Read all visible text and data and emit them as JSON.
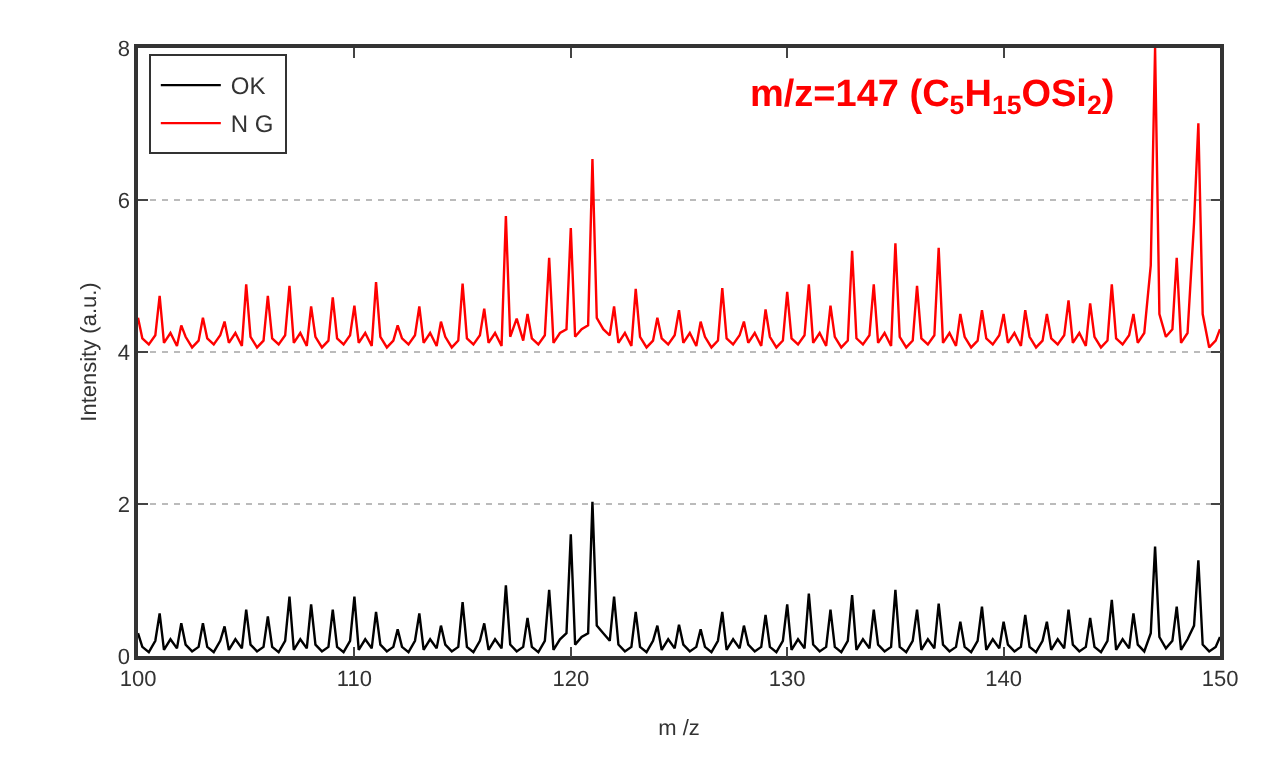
{
  "chart_data": {
    "type": "line",
    "xlabel": "m /z",
    "ylabel": "Intensity (a.u.)",
    "xlim": [
      100,
      150
    ],
    "xticks": [
      100,
      110,
      120,
      130,
      140,
      150
    ],
    "ylim": [
      0,
      8
    ],
    "yticks": [
      0,
      2,
      4,
      6,
      8
    ],
    "grid": "y",
    "legend": "top left",
    "line_style": "solid",
    "annotations": [
      "m/z=147 (C$_{5}$H$_{15}$OSi$_{2}$)"
    ],
    "x": [
      100,
      100.2,
      100.5,
      100.8,
      101,
      101.2,
      101.5,
      101.8,
      102,
      102.2,
      102.5,
      102.8,
      103,
      103.2,
      103.5,
      103.8,
      104,
      104.2,
      104.5,
      104.8,
      105,
      105.2,
      105.5,
      105.8,
      106,
      106.2,
      106.5,
      106.8,
      107,
      107.2,
      107.5,
      107.8,
      108,
      108.2,
      108.5,
      108.8,
      109,
      109.2,
      109.5,
      109.8,
      110,
      110.2,
      110.5,
      110.8,
      111,
      111.2,
      111.5,
      111.8,
      112,
      112.2,
      112.5,
      112.8,
      113,
      113.2,
      113.5,
      113.8,
      114,
      114.2,
      114.5,
      114.8,
      115,
      115.2,
      115.5,
      115.8,
      116,
      116.2,
      116.5,
      116.8,
      117,
      117.2,
      117.5,
      117.8,
      118,
      118.2,
      118.5,
      118.8,
      119,
      119.2,
      119.5,
      119.8,
      120,
      120.2,
      120.5,
      120.8,
      121,
      121.2,
      121.5,
      121.8,
      122,
      122.2,
      122.5,
      122.8,
      123,
      123.2,
      123.5,
      123.8,
      124,
      124.2,
      124.5,
      124.8,
      125,
      125.2,
      125.5,
      125.8,
      126,
      126.2,
      126.5,
      126.8,
      127,
      127.2,
      127.5,
      127.8,
      128,
      128.2,
      128.5,
      128.8,
      129,
      129.2,
      129.5,
      129.8,
      130,
      130.2,
      130.5,
      130.8,
      131,
      131.2,
      131.5,
      131.8,
      132,
      132.2,
      132.5,
      132.8,
      133,
      133.2,
      133.5,
      133.8,
      134,
      134.2,
      134.5,
      134.8,
      135,
      135.2,
      135.5,
      135.8,
      136,
      136.2,
      136.5,
      136.8,
      137,
      137.2,
      137.5,
      137.8,
      138,
      138.2,
      138.5,
      138.8,
      139,
      139.2,
      139.5,
      139.8,
      140,
      140.2,
      140.5,
      140.8,
      141,
      141.2,
      141.5,
      141.8,
      142,
      142.2,
      142.5,
      142.8,
      143,
      143.2,
      143.5,
      143.8,
      144,
      144.2,
      144.5,
      144.8,
      145,
      145.2,
      145.5,
      145.8,
      146,
      146.2,
      146.5,
      146.8,
      147,
      147.2,
      147.5,
      147.8,
      148,
      148.2,
      148.5,
      148.8,
      149,
      149.2,
      149.5,
      149.8,
      150
    ],
    "series": [
      {
        "name": "OK",
        "color": "#000000",
        "values": [
          0.3,
          0.12,
          0.05,
          0.2,
          0.56,
          0.08,
          0.22,
          0.1,
          0.43,
          0.15,
          0.06,
          0.12,
          0.43,
          0.12,
          0.05,
          0.2,
          0.39,
          0.08,
          0.22,
          0.1,
          0.61,
          0.15,
          0.06,
          0.12,
          0.52,
          0.12,
          0.05,
          0.2,
          0.78,
          0.08,
          0.22,
          0.1,
          0.68,
          0.15,
          0.06,
          0.12,
          0.61,
          0.12,
          0.05,
          0.2,
          0.78,
          0.08,
          0.22,
          0.1,
          0.58,
          0.15,
          0.06,
          0.12,
          0.35,
          0.12,
          0.05,
          0.2,
          0.56,
          0.08,
          0.22,
          0.1,
          0.4,
          0.15,
          0.06,
          0.12,
          0.71,
          0.12,
          0.05,
          0.2,
          0.43,
          0.08,
          0.22,
          0.1,
          0.93,
          0.15,
          0.06,
          0.12,
          0.5,
          0.12,
          0.05,
          0.2,
          0.87,
          0.08,
          0.22,
          0.3,
          1.6,
          0.15,
          0.25,
          0.3,
          2.03,
          0.4,
          0.3,
          0.2,
          0.78,
          0.15,
          0.06,
          0.12,
          0.58,
          0.12,
          0.05,
          0.2,
          0.4,
          0.08,
          0.22,
          0.1,
          0.41,
          0.15,
          0.06,
          0.12,
          0.35,
          0.12,
          0.05,
          0.2,
          0.58,
          0.08,
          0.22,
          0.1,
          0.4,
          0.15,
          0.06,
          0.12,
          0.54,
          0.12,
          0.05,
          0.2,
          0.68,
          0.08,
          0.22,
          0.1,
          0.82,
          0.15,
          0.06,
          0.12,
          0.61,
          0.12,
          0.05,
          0.2,
          0.8,
          0.08,
          0.22,
          0.1,
          0.61,
          0.15,
          0.06,
          0.12,
          0.87,
          0.12,
          0.05,
          0.2,
          0.61,
          0.08,
          0.22,
          0.1,
          0.69,
          0.15,
          0.06,
          0.12,
          0.45,
          0.12,
          0.05,
          0.2,
          0.65,
          0.08,
          0.22,
          0.1,
          0.45,
          0.15,
          0.06,
          0.12,
          0.54,
          0.12,
          0.05,
          0.2,
          0.45,
          0.08,
          0.22,
          0.1,
          0.61,
          0.15,
          0.06,
          0.12,
          0.5,
          0.12,
          0.05,
          0.2,
          0.74,
          0.08,
          0.22,
          0.1,
          0.56,
          0.15,
          0.06,
          0.3,
          1.44,
          0.25,
          0.1,
          0.2,
          0.65,
          0.08,
          0.22,
          0.4,
          1.26,
          0.15,
          0.06,
          0.12,
          0.25
        ]
      },
      {
        "name": "N G",
        "color": "#ff0000",
        "values": [
          4.45,
          4.18,
          4.1,
          4.22,
          4.74,
          4.12,
          4.25,
          4.08,
          4.35,
          4.2,
          4.06,
          4.15,
          4.45,
          4.18,
          4.1,
          4.22,
          4.4,
          4.12,
          4.25,
          4.08,
          4.89,
          4.2,
          4.06,
          4.15,
          4.74,
          4.18,
          4.1,
          4.22,
          4.87,
          4.12,
          4.25,
          4.08,
          4.6,
          4.2,
          4.06,
          4.15,
          4.72,
          4.18,
          4.1,
          4.22,
          4.61,
          4.12,
          4.25,
          4.08,
          4.92,
          4.2,
          4.06,
          4.15,
          4.35,
          4.18,
          4.1,
          4.22,
          4.6,
          4.12,
          4.25,
          4.08,
          4.4,
          4.2,
          4.06,
          4.15,
          4.9,
          4.18,
          4.1,
          4.22,
          4.57,
          4.12,
          4.25,
          4.08,
          5.79,
          4.2,
          4.44,
          4.15,
          4.5,
          4.18,
          4.1,
          4.22,
          5.24,
          4.12,
          4.25,
          4.3,
          5.63,
          4.2,
          4.3,
          4.35,
          6.54,
          4.45,
          4.3,
          4.22,
          4.6,
          4.12,
          4.25,
          4.08,
          4.83,
          4.2,
          4.06,
          4.15,
          4.45,
          4.18,
          4.1,
          4.22,
          4.55,
          4.12,
          4.25,
          4.08,
          4.4,
          4.2,
          4.06,
          4.15,
          4.84,
          4.18,
          4.1,
          4.22,
          4.4,
          4.12,
          4.25,
          4.08,
          4.56,
          4.2,
          4.06,
          4.15,
          4.79,
          4.18,
          4.1,
          4.22,
          4.89,
          4.12,
          4.25,
          4.08,
          4.61,
          4.2,
          4.06,
          4.15,
          5.33,
          4.18,
          4.1,
          4.22,
          4.89,
          4.12,
          4.25,
          4.08,
          5.43,
          4.2,
          4.06,
          4.15,
          4.87,
          4.18,
          4.1,
          4.22,
          5.37,
          4.12,
          4.25,
          4.08,
          4.5,
          4.2,
          4.06,
          4.15,
          4.55,
          4.18,
          4.1,
          4.22,
          4.5,
          4.12,
          4.25,
          4.08,
          4.55,
          4.2,
          4.06,
          4.15,
          4.5,
          4.18,
          4.1,
          4.22,
          4.68,
          4.12,
          4.25,
          4.08,
          4.64,
          4.2,
          4.06,
          4.15,
          4.89,
          4.18,
          4.1,
          4.22,
          4.5,
          4.12,
          4.25,
          5.14,
          8.0,
          4.5,
          4.2,
          4.3,
          5.24,
          4.12,
          4.25,
          5.7,
          7.01,
          4.5,
          4.06,
          4.15,
          4.3
        ]
      }
    ]
  }
}
